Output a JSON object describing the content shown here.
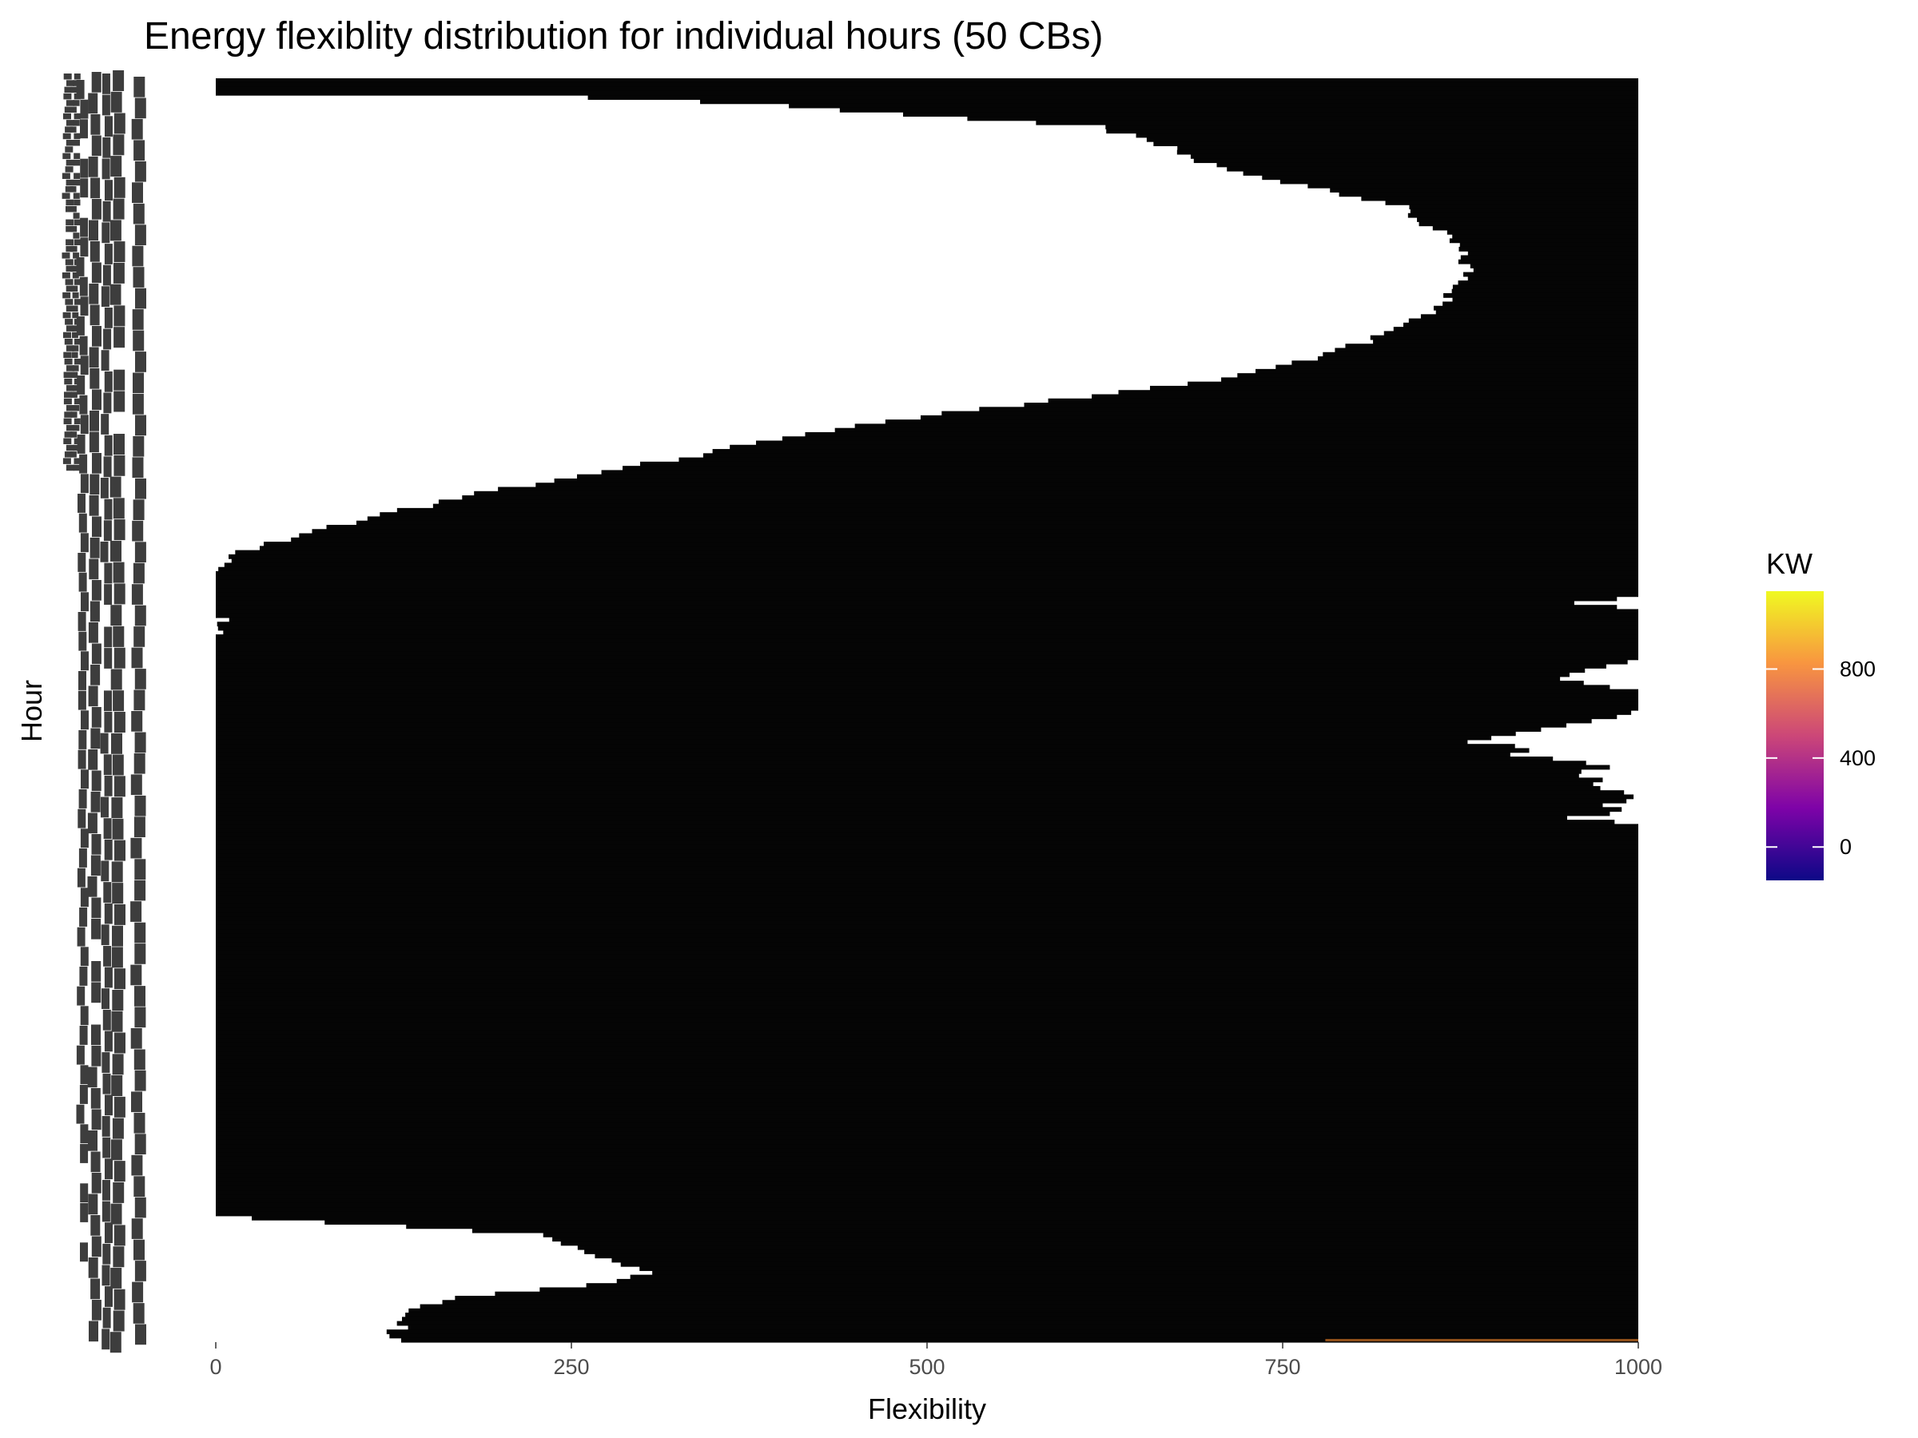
{
  "chart_data": {
    "type": "heatmap",
    "title": "Energy flexiblity distribution for individual hours (50 CBs)",
    "xlabel": "Flexibility",
    "ylabel": "Hour",
    "xlim": [
      0,
      1000
    ],
    "x_ticks": [
      0,
      250,
      500,
      750,
      1000
    ],
    "x_tick_labels": [
      "0",
      "250",
      "500",
      "750",
      "1000"
    ],
    "y_tick_labels": [],
    "legend": {
      "title": "KW",
      "position": "right",
      "ticks": [
        0,
        400,
        800
      ],
      "tick_labels": [
        "0",
        "400",
        "800"
      ],
      "range": [
        -150,
        1150
      ],
      "colorscale": [
        "#0d0887",
        "#7e03a8",
        "#cc4778",
        "#f89540",
        "#f0f921"
      ]
    },
    "fill_color": "#050505",
    "grid": false,
    "row_left_edge": [
      [
        0.0,
        0
      ],
      [
        0.012,
        0
      ],
      [
        0.014,
        240
      ],
      [
        0.02,
        380
      ],
      [
        0.035,
        570
      ],
      [
        0.038,
        620
      ],
      [
        0.045,
        640
      ],
      [
        0.055,
        670
      ],
      [
        0.065,
        690
      ],
      [
        0.075,
        720
      ],
      [
        0.085,
        770
      ],
      [
        0.1,
        830
      ],
      [
        0.13,
        870
      ],
      [
        0.15,
        880
      ],
      [
        0.16,
        880
      ],
      [
        0.17,
        870
      ],
      [
        0.18,
        860
      ],
      [
        0.2,
        830
      ],
      [
        0.22,
        780
      ],
      [
        0.24,
        700
      ],
      [
        0.255,
        590
      ],
      [
        0.27,
        480
      ],
      [
        0.28,
        430
      ],
      [
        0.29,
        370
      ],
      [
        0.3,
        330
      ],
      [
        0.315,
        250
      ],
      [
        0.33,
        180
      ],
      [
        0.345,
        120
      ],
      [
        0.36,
        60
      ],
      [
        0.375,
        20
      ],
      [
        0.39,
        0
      ],
      [
        0.425,
        0
      ],
      [
        0.43,
        5
      ],
      [
        0.44,
        0
      ],
      [
        0.9,
        0
      ],
      [
        0.91,
        160
      ],
      [
        0.915,
        230
      ],
      [
        0.925,
        250
      ],
      [
        0.935,
        280
      ],
      [
        0.945,
        310
      ],
      [
        0.955,
        260
      ],
      [
        0.965,
        170
      ],
      [
        0.975,
        130
      ],
      [
        0.985,
        130
      ],
      [
        0.995,
        125
      ],
      [
        1.0,
        125
      ]
    ],
    "row_right_edge": [
      [
        0.0,
        1000
      ],
      [
        0.41,
        1000
      ],
      [
        0.415,
        955
      ],
      [
        0.42,
        1000
      ],
      [
        0.46,
        1000
      ],
      [
        0.47,
        955
      ],
      [
        0.475,
        945
      ],
      [
        0.48,
        970
      ],
      [
        0.485,
        1000
      ],
      [
        0.5,
        1000
      ],
      [
        0.505,
        985
      ],
      [
        0.52,
        905
      ],
      [
        0.525,
        880
      ],
      [
        0.53,
        930
      ],
      [
        0.535,
        910
      ],
      [
        0.54,
        955
      ],
      [
        0.545,
        980
      ],
      [
        0.55,
        950
      ],
      [
        0.555,
        975
      ],
      [
        0.56,
        965
      ],
      [
        0.565,
        990
      ],
      [
        0.57,
        1000
      ],
      [
        0.575,
        975
      ],
      [
        0.58,
        995
      ],
      [
        0.585,
        950
      ],
      [
        0.59,
        1000
      ],
      [
        1.0,
        1000
      ]
    ]
  }
}
